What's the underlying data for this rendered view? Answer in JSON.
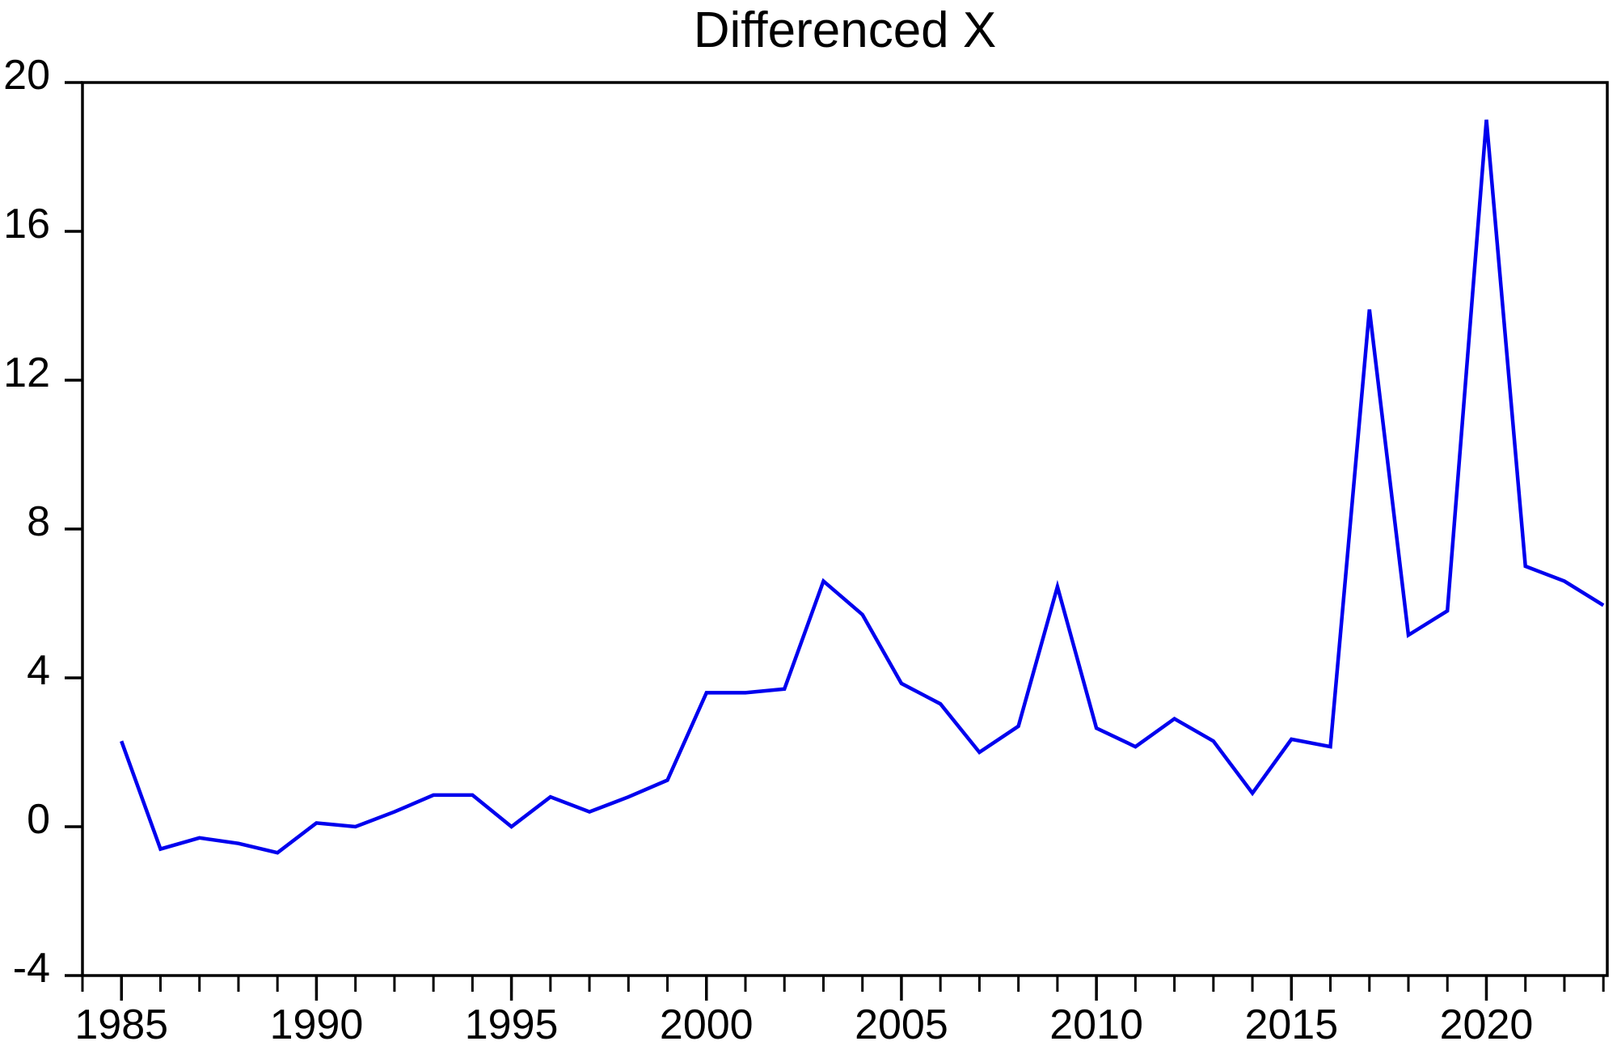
{
  "page": {
    "background_color": "#ffffff",
    "text_color": "#000000"
  },
  "chart_data": {
    "type": "line",
    "title": "Differenced X",
    "xlabel": "",
    "ylabel": "",
    "grid": false,
    "legend": false,
    "frame": "box",
    "line_color": "#0000ee",
    "axis_color": "#000000",
    "xlim": [
      1984,
      2023.1
    ],
    "ylim": [
      -4,
      20
    ],
    "y_ticks": [
      20,
      16,
      12,
      8,
      4,
      0,
      -4
    ],
    "x_major_ticks": [
      1985,
      1990,
      1995,
      2000,
      2005,
      2010,
      2015,
      2020
    ],
    "x_major_tick_labels": [
      "1985",
      "1990",
      "1995",
      "2000",
      "2005",
      "2010",
      "2015",
      "2020"
    ],
    "x_minor_tick_every": 1,
    "x": [
      1985,
      1986,
      1987,
      1988,
      1989,
      1990,
      1991,
      1992,
      1993,
      1994,
      1995,
      1996,
      1997,
      1998,
      1999,
      2000,
      2001,
      2002,
      2003,
      2004,
      2005,
      2006,
      2007,
      2008,
      2009,
      2010,
      2011,
      2012,
      2013,
      2014,
      2015,
      2016,
      2017,
      2018,
      2019,
      2020,
      2021,
      2022,
      2023
    ],
    "values": [
      2.3,
      -0.6,
      -0.3,
      -0.45,
      -0.7,
      0.1,
      0.0,
      0.4,
      0.85,
      0.85,
      0.0,
      0.8,
      0.4,
      0.8,
      1.25,
      3.6,
      3.6,
      3.7,
      6.6,
      5.7,
      3.85,
      3.3,
      2.0,
      2.7,
      6.45,
      2.65,
      2.15,
      2.9,
      2.3,
      0.9,
      2.35,
      2.15,
      13.9,
      5.15,
      5.8,
      19.0,
      7.0,
      6.6,
      5.95
    ]
  }
}
